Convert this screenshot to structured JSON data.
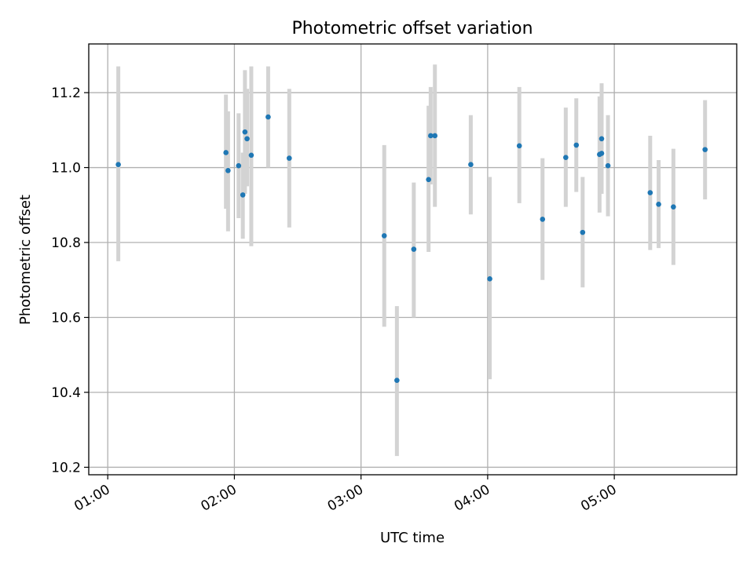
{
  "chart_data": {
    "type": "scatter",
    "title": "Photometric offset variation",
    "xlabel": "UTC time",
    "ylabel": "Photometric offset",
    "x_is_time": true,
    "xlim": [
      "00:51",
      "05:58"
    ],
    "ylim": [
      10.18,
      11.33
    ],
    "xticks": [
      "01:00",
      "02:00",
      "03:00",
      "04:00",
      "05:00"
    ],
    "yticks": [
      10.2,
      10.4,
      10.6,
      10.8,
      11.0,
      11.2
    ],
    "grid": true,
    "error_bars": true,
    "colors": {
      "marker": "#1f77b4",
      "error_bar": "#d3d3d3",
      "grid": "#b0b0b0"
    },
    "points": [
      {
        "x": "01:05",
        "y": 11.008,
        "yerr_low": 10.75,
        "yerr_high": 11.27
      },
      {
        "x": "01:56",
        "y": 11.04,
        "yerr_low": 10.89,
        "yerr_high": 11.195
      },
      {
        "x": "01:57",
        "y": 10.992,
        "yerr_low": 10.83,
        "yerr_high": 11.15
      },
      {
        "x": "02:02",
        "y": 11.005,
        "yerr_low": 10.865,
        "yerr_high": 11.145
      },
      {
        "x": "02:04",
        "y": 10.927,
        "yerr_low": 10.81,
        "yerr_high": 11.04
      },
      {
        "x": "02:05",
        "y": 11.095,
        "yerr_low": 10.93,
        "yerr_high": 11.26
      },
      {
        "x": "02:06",
        "y": 11.077,
        "yerr_low": 10.95,
        "yerr_high": 11.21
      },
      {
        "x": "02:08",
        "y": 11.033,
        "yerr_low": 10.79,
        "yerr_high": 11.27
      },
      {
        "x": "02:16",
        "y": 11.135,
        "yerr_low": 11.0,
        "yerr_high": 11.27
      },
      {
        "x": "02:26",
        "y": 11.025,
        "yerr_low": 10.84,
        "yerr_high": 11.21
      },
      {
        "x": "03:11",
        "y": 10.818,
        "yerr_low": 10.575,
        "yerr_high": 11.06
      },
      {
        "x": "03:17",
        "y": 10.432,
        "yerr_low": 10.23,
        "yerr_high": 10.63
      },
      {
        "x": "03:25",
        "y": 10.782,
        "yerr_low": 10.6,
        "yerr_high": 10.96
      },
      {
        "x": "03:32",
        "y": 10.968,
        "yerr_low": 10.775,
        "yerr_high": 11.165
      },
      {
        "x": "03:33",
        "y": 11.085,
        "yerr_low": 10.955,
        "yerr_high": 11.215
      },
      {
        "x": "03:35",
        "y": 11.085,
        "yerr_low": 10.895,
        "yerr_high": 11.275
      },
      {
        "x": "03:52",
        "y": 11.008,
        "yerr_low": 10.875,
        "yerr_high": 11.14
      },
      {
        "x": "04:01",
        "y": 10.703,
        "yerr_low": 10.435,
        "yerr_high": 10.975
      },
      {
        "x": "04:15",
        "y": 11.058,
        "yerr_low": 10.905,
        "yerr_high": 11.215
      },
      {
        "x": "04:26",
        "y": 10.862,
        "yerr_low": 10.7,
        "yerr_high": 11.025
      },
      {
        "x": "04:37",
        "y": 11.027,
        "yerr_low": 10.895,
        "yerr_high": 11.16
      },
      {
        "x": "04:42",
        "y": 11.06,
        "yerr_low": 10.935,
        "yerr_high": 11.185
      },
      {
        "x": "04:45",
        "y": 10.827,
        "yerr_low": 10.68,
        "yerr_high": 10.975
      },
      {
        "x": "04:53",
        "y": 11.035,
        "yerr_low": 10.88,
        "yerr_high": 11.19
      },
      {
        "x": "04:54",
        "y": 11.038,
        "yerr_low": 10.93,
        "yerr_high": 11.14
      },
      {
        "x": "04:54",
        "y": 11.077,
        "yerr_low": 10.93,
        "yerr_high": 11.225
      },
      {
        "x": "04:57",
        "y": 11.005,
        "yerr_low": 10.87,
        "yerr_high": 11.14
      },
      {
        "x": "05:17",
        "y": 10.933,
        "yerr_low": 10.78,
        "yerr_high": 11.085
      },
      {
        "x": "05:21",
        "y": 10.902,
        "yerr_low": 10.785,
        "yerr_high": 11.02
      },
      {
        "x": "05:28",
        "y": 10.895,
        "yerr_low": 10.74,
        "yerr_high": 11.05
      },
      {
        "x": "05:43",
        "y": 11.048,
        "yerr_low": 10.915,
        "yerr_high": 11.18
      }
    ]
  }
}
